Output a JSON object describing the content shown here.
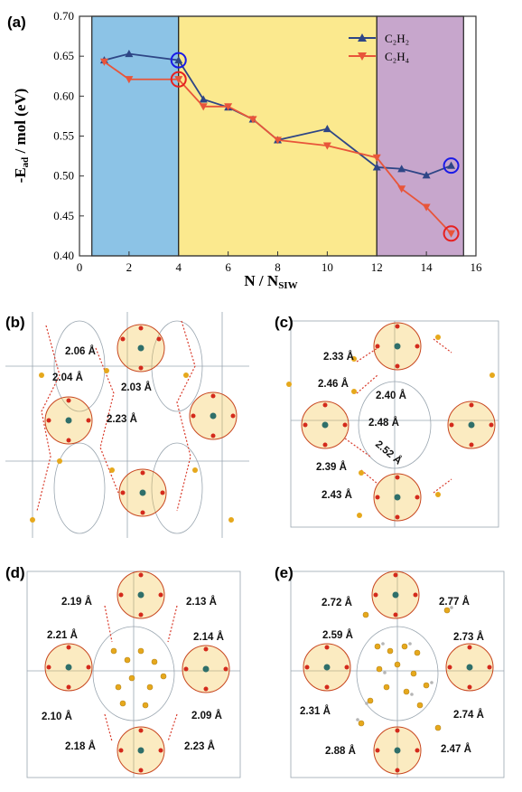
{
  "chart_data": {
    "type": "line",
    "panel_label": "(a)",
    "xlabel": "N / N",
    "xlabel_sub": "SIW",
    "ylabel": "-E",
    "ylabel_sub": "ad",
    "ylabel_rest": " / mol (eV)",
    "xlim": [
      0,
      16
    ],
    "ylim": [
      0.4,
      0.7
    ],
    "x_ticks": [
      "0",
      "2",
      "4",
      "6",
      "8",
      "10",
      "12",
      "14",
      "16"
    ],
    "y_ticks": [
      "0.40",
      "0.45",
      "0.50",
      "0.55",
      "0.60",
      "0.65",
      "0.70"
    ],
    "regions": [
      {
        "x0": 0.5,
        "x1": 4,
        "color": "#8cc3e6"
      },
      {
        "x0": 4,
        "x1": 12,
        "color": "#fbe98e"
      },
      {
        "x0": 12,
        "x1": 15.5,
        "color": "#c7a6cc"
      }
    ],
    "series": [
      {
        "name": "C₂H₂",
        "color": "#2e4686",
        "marker": "triangle-up",
        "x": [
          1,
          2,
          4,
          5,
          6,
          7,
          8,
          10,
          12,
          13,
          14,
          15
        ],
        "y": [
          0.645,
          0.653,
          0.645,
          0.596,
          0.586,
          0.571,
          0.545,
          0.559,
          0.511,
          0.509,
          0.501,
          0.513
        ]
      },
      {
        "name": "C₂H₄",
        "color": "#e8553a",
        "marker": "triangle-down",
        "x": [
          1,
          2,
          4,
          5,
          6,
          7,
          8,
          10,
          12,
          13,
          14,
          15
        ],
        "y": [
          0.643,
          0.621,
          0.621,
          0.587,
          0.587,
          0.571,
          0.545,
          0.538,
          0.523,
          0.484,
          0.461,
          0.428
        ]
      }
    ],
    "highlights": [
      {
        "x": 4,
        "y": 0.645,
        "color": "#1a1ae6"
      },
      {
        "x": 4,
        "y": 0.621,
        "color": "#e62020"
      },
      {
        "x": 15,
        "y": 0.513,
        "color": "#1a1ae6"
      },
      {
        "x": 15,
        "y": 0.428,
        "color": "#e62020"
      }
    ],
    "legend_position": "top-right",
    "grid": false
  },
  "panels": {
    "b": {
      "label": "(b)",
      "d1": "2.06 Å",
      "d2": "2.04 Å",
      "d3": "2.03 Å",
      "d4": "2.23 Å"
    },
    "c": {
      "label": "(c)",
      "d1": "2.33 Å",
      "d2": "2.46 Å",
      "d3": "2.40 Å",
      "d4": "2.48 Å",
      "d5": "2.52 Å",
      "d6": "2.39 Å",
      "d7": "2.43 Å"
    },
    "d": {
      "label": "(d)",
      "d1": "2.19 Å",
      "d2": "2.13 Å",
      "d3": "2.21 Å",
      "d4": "2.14 Å",
      "d5": "2.10 Å",
      "d6": "2.09 Å",
      "d7": "2.18 Å",
      "d8": "2.23 Å"
    },
    "e": {
      "label": "(e)",
      "d1": "2.72 Å",
      "d2": "2.77 Å",
      "d3": "2.59 Å",
      "d4": "2.73 Å",
      "d5": "2.31 Å",
      "d6": "2.74 Å",
      "d7": "2.88 Å",
      "d8": "2.47 Å"
    }
  }
}
